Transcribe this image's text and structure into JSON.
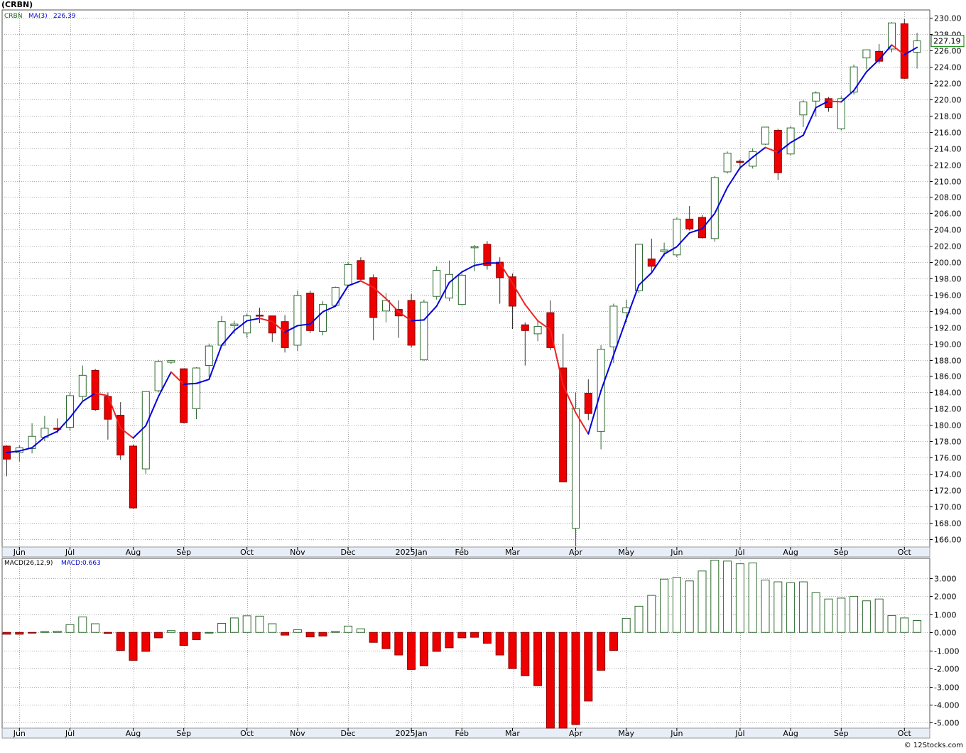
{
  "title": "(CRBN)",
  "credit": "© 12Stocks.com",
  "colors": {
    "up": "#2e6b2e",
    "down": "#ee0000",
    "ma_up": "#0000dd",
    "ma_down": "#ee2222",
    "grid": "#aaaaaa",
    "band": "#e8eef7",
    "badge": "#008000"
  },
  "price_legend": {
    "symbol": "CRBN",
    "ma_label": "MA(3)",
    "ma_value": "226.39"
  },
  "price_badge": "227.19",
  "macd_legend": {
    "label": "MACD(26,12,9)",
    "value_label": "MACD:0.663"
  },
  "months": [
    {
      "label": "Jun",
      "i": 1
    },
    {
      "label": "Jul",
      "i": 5
    },
    {
      "label": "Aug",
      "i": 10
    },
    {
      "label": "Sep",
      "i": 14
    },
    {
      "label": "Oct",
      "i": 19
    },
    {
      "label": "Nov",
      "i": 23
    },
    {
      "label": "Dec",
      "i": 27
    },
    {
      "label": "2025Jan",
      "i": 32
    },
    {
      "label": "Feb",
      "i": 36
    },
    {
      "label": "Mar",
      "i": 40
    },
    {
      "label": "Apr",
      "i": 45
    },
    {
      "label": "May",
      "i": 49
    },
    {
      "label": "Jun",
      "i": 53
    },
    {
      "label": "Jul",
      "i": 58
    },
    {
      "label": "Aug",
      "i": 62
    },
    {
      "label": "Sep",
      "i": 66
    },
    {
      "label": "Oct",
      "i": 71
    }
  ],
  "chart_data": [
    {
      "type": "candlestick",
      "symbol": "CRBN",
      "period": "weekly",
      "ylim": [
        165,
        231
      ],
      "yticks": [
        "166.00",
        "168.00",
        "170.00",
        "172.00",
        "174.00",
        "176.00",
        "178.00",
        "180.00",
        "182.00",
        "184.00",
        "186.00",
        "188.00",
        "190.00",
        "192.00",
        "194.00",
        "196.00",
        "198.00",
        "200.00",
        "202.00",
        "204.00",
        "206.00",
        "208.00",
        "210.00",
        "212.00",
        "214.00",
        "216.00",
        "218.00",
        "220.00",
        "222.00",
        "224.00",
        "226.00",
        "228.00",
        "230.00"
      ],
      "last_price": 227.19,
      "ohlc": [
        [
          177.4,
          177.5,
          173.7,
          175.8
        ],
        [
          176.6,
          177.5,
          175.5,
          177.2
        ],
        [
          177.1,
          180.2,
          176.5,
          178.6
        ],
        [
          178.5,
          181.1,
          178.0,
          179.6
        ],
        [
          179.6,
          180.8,
          179.0,
          179.5
        ],
        [
          179.7,
          184.0,
          179.3,
          183.6
        ],
        [
          183.5,
          187.3,
          183.0,
          186.1
        ],
        [
          186.7,
          186.9,
          181.7,
          181.9
        ],
        [
          183.5,
          184.0,
          178.2,
          180.7
        ],
        [
          181.2,
          182.8,
          175.7,
          176.3
        ],
        [
          177.4,
          177.6,
          169.7,
          169.8
        ],
        [
          174.6,
          184.1,
          174.0,
          184.1
        ],
        [
          184.2,
          188.0,
          184.0,
          187.8
        ],
        [
          187.7,
          188.0,
          187.5,
          187.9
        ],
        [
          186.9,
          186.9,
          180.2,
          180.3
        ],
        [
          182.0,
          187.1,
          180.7,
          187.0
        ],
        [
          187.3,
          190.0,
          185.9,
          189.7
        ],
        [
          189.8,
          193.4,
          189.8,
          192.7
        ],
        [
          192.2,
          192.8,
          191.2,
          192.4
        ],
        [
          191.3,
          193.7,
          190.7,
          193.4
        ],
        [
          193.5,
          194.4,
          192.5,
          193.4
        ],
        [
          193.4,
          193.4,
          190.2,
          191.3
        ],
        [
          192.7,
          193.5,
          188.9,
          189.5
        ],
        [
          189.8,
          196.5,
          189.1,
          195.9
        ],
        [
          196.2,
          196.5,
          191.3,
          191.6
        ],
        [
          191.5,
          195.2,
          191.0,
          194.8
        ],
        [
          194.7,
          197.0,
          194.5,
          196.9
        ],
        [
          197.2,
          200.0,
          197.0,
          199.7
        ],
        [
          200.2,
          200.6,
          197.8,
          197.9
        ],
        [
          198.1,
          198.5,
          190.4,
          193.2
        ],
        [
          194.0,
          196.2,
          192.6,
          195.3
        ],
        [
          194.2,
          195.3,
          190.7,
          193.4
        ],
        [
          195.3,
          196.1,
          189.5,
          189.8
        ],
        [
          188.0,
          195.4,
          187.9,
          195.1
        ],
        [
          195.8,
          199.5,
          195.4,
          199.0
        ],
        [
          195.6,
          200.2,
          195.2,
          198.5
        ],
        [
          194.8,
          198.6,
          194.7,
          198.4
        ],
        [
          201.9,
          202.1,
          198.9,
          201.9
        ],
        [
          202.2,
          202.6,
          199.1,
          199.6
        ],
        [
          200.0,
          200.6,
          194.9,
          198.1
        ],
        [
          198.2,
          198.6,
          191.8,
          194.6
        ],
        [
          192.3,
          192.6,
          187.3,
          191.6
        ],
        [
          191.2,
          192.7,
          190.3,
          192.1
        ],
        [
          193.8,
          195.3,
          189.2,
          189.5
        ],
        [
          187.0,
          191.2,
          173.0,
          173.0
        ],
        [
          167.3,
          184.0,
          165.1,
          182.0
        ],
        [
          183.9,
          185.6,
          180.6,
          181.4
        ],
        [
          179.2,
          189.8,
          177.0,
          189.3
        ],
        [
          189.6,
          194.9,
          187.6,
          194.6
        ],
        [
          193.8,
          195.4,
          192.6,
          194.4
        ],
        [
          196.5,
          202.2,
          196.2,
          202.2
        ],
        [
          200.4,
          202.9,
          198.8,
          199.5
        ],
        [
          201.3,
          202.4,
          200.7,
          201.5
        ],
        [
          200.9,
          205.5,
          200.6,
          205.3
        ],
        [
          205.3,
          206.9,
          203.9,
          204.1
        ],
        [
          205.5,
          205.8,
          202.9,
          203.0
        ],
        [
          202.9,
          210.6,
          202.5,
          210.4
        ],
        [
          211.1,
          213.6,
          210.9,
          213.4
        ],
        [
          212.4,
          212.6,
          211.4,
          212.3
        ],
        [
          211.8,
          214.0,
          211.5,
          213.6
        ],
        [
          214.5,
          216.6,
          214.4,
          216.6
        ],
        [
          216.2,
          216.4,
          210.1,
          211.0
        ],
        [
          213.3,
          216.7,
          213.1,
          216.5
        ],
        [
          218.1,
          219.9,
          216.6,
          219.7
        ],
        [
          219.8,
          221.0,
          217.9,
          220.8
        ],
        [
          220.1,
          220.3,
          218.5,
          219.0
        ],
        [
          216.4,
          220.4,
          216.2,
          220.1
        ],
        [
          220.9,
          224.3,
          220.6,
          224.0
        ],
        [
          225.1,
          226.1,
          223.7,
          226.1
        ],
        [
          225.9,
          226.8,
          224.4,
          224.7
        ],
        [
          226.2,
          229.5,
          225.8,
          229.4
        ],
        [
          229.3,
          229.9,
          222.5,
          222.6
        ],
        [
          225.8,
          228.2,
          223.8,
          227.2
        ]
      ],
      "ma3": [
        176.6,
        176.8,
        177.2,
        178.5,
        179.2,
        180.9,
        182.9,
        183.9,
        183.6,
        179.6,
        178.4,
        179.9,
        183.5,
        186.5,
        185.0,
        185.1,
        185.6,
        189.8,
        191.6,
        192.8,
        193.1,
        192.7,
        191.4,
        192.2,
        192.4,
        193.9,
        194.6,
        197.1,
        197.7,
        196.9,
        195.5,
        193.9,
        192.8,
        192.9,
        194.6,
        197.5,
        198.8,
        199.6,
        199.9,
        199.9,
        197.4,
        194.8,
        192.8,
        191.7,
        184.9,
        181.5,
        178.9,
        184.2,
        188.6,
        193.0,
        197.2,
        198.7,
        201.0,
        201.9,
        203.6,
        204.1,
        206.0,
        209.2,
        211.6,
        212.9,
        214.1,
        213.5,
        214.7,
        215.6,
        219.0,
        219.8,
        219.7,
        221.1,
        223.4,
        224.9,
        226.7,
        225.5,
        226.4
      ]
    },
    {
      "type": "bar",
      "name": "MACD(26,12,9)",
      "last_value": 0.663,
      "ylim": [
        -5.3,
        4.1
      ],
      "yticks": [
        "-5.000",
        "-4.000",
        "-3.000",
        "-2.000",
        "-1.000",
        "0.000",
        "1.000",
        "2.000",
        "3.000"
      ],
      "values": [
        -0.1,
        -0.1,
        -0.03,
        0.05,
        0.07,
        0.43,
        0.86,
        0.48,
        -0.05,
        -1.0,
        -1.55,
        -1.05,
        -0.3,
        0.1,
        -0.72,
        -0.4,
        0.0,
        0.5,
        0.8,
        0.92,
        0.9,
        0.48,
        -0.15,
        0.15,
        -0.25,
        -0.2,
        0.06,
        0.35,
        0.2,
        -0.55,
        -0.9,
        -1.25,
        -2.05,
        -1.85,
        -1.05,
        -0.85,
        -0.3,
        -0.27,
        -0.6,
        -1.25,
        -2.0,
        -2.4,
        -2.95,
        -5.3,
        -5.3,
        -5.1,
        -3.8,
        -2.1,
        -1.0,
        0.78,
        1.45,
        2.05,
        2.95,
        3.05,
        2.85,
        3.4,
        4.0,
        3.95,
        3.8,
        3.85,
        2.9,
        2.8,
        2.75,
        2.8,
        2.2,
        1.85,
        1.9,
        2.0,
        1.75,
        1.85,
        0.93,
        0.8,
        0.66
      ]
    }
  ]
}
